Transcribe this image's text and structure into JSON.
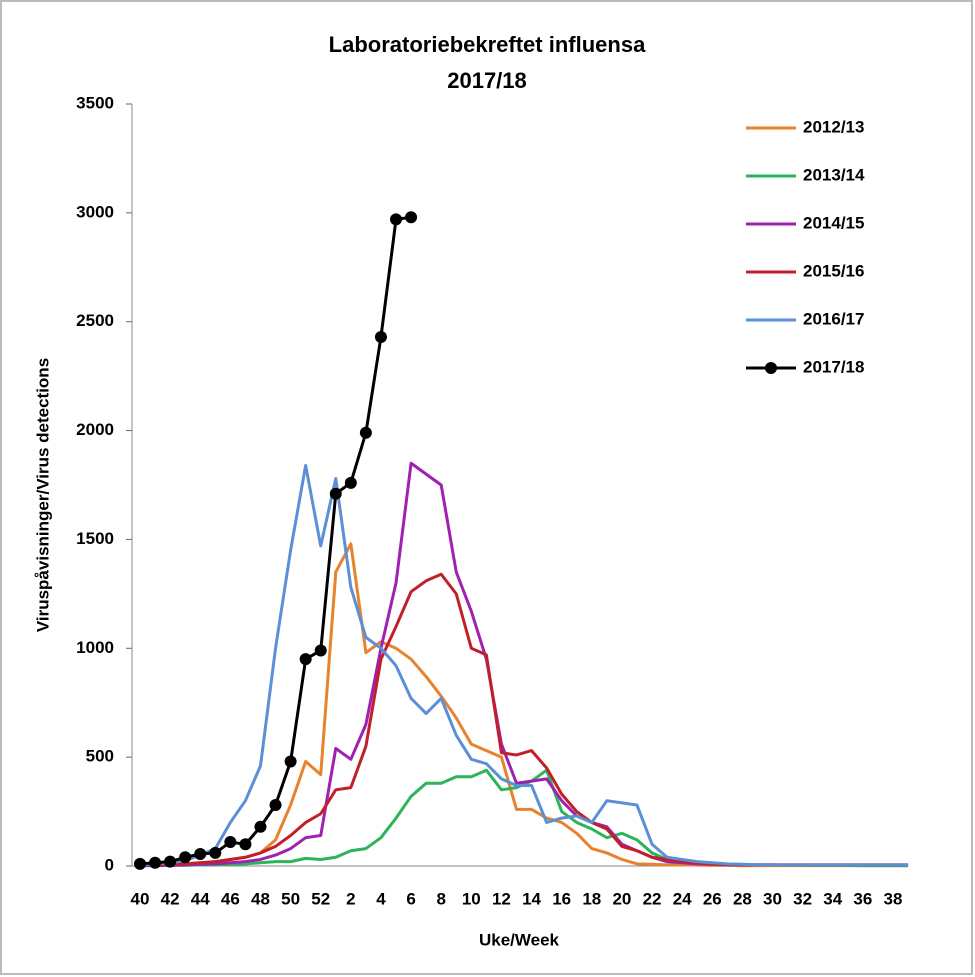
{
  "chart_data": {
    "type": "line",
    "title": "Laboratoriebekreftet influensa",
    "subtitle": "2017/18",
    "x_label": "Uke/Week",
    "y_label": "Viruspåvisninger/Virus detections",
    "categories": [
      "40",
      null,
      "42",
      null,
      "44",
      null,
      "46",
      null,
      "48",
      null,
      "50",
      null,
      "52",
      null,
      "2",
      null,
      "4",
      null,
      "6",
      null,
      "8",
      null,
      "10",
      null,
      "12",
      null,
      "14",
      null,
      "16",
      null,
      "18",
      null,
      "20",
      null,
      "22",
      null,
      "24",
      null,
      "26",
      null,
      "28",
      null,
      "30",
      null,
      "32",
      null,
      "34",
      null,
      "36",
      null,
      "38",
      null
    ],
    "ylim": [
      0,
      3500
    ],
    "yticks": [
      0,
      500,
      1000,
      1500,
      2000,
      2500,
      3000,
      3500
    ],
    "legend": "top-right",
    "series": [
      {
        "name": "2012/13",
        "color": "#e8822c",
        "values": [
          5,
          5,
          8,
          10,
          15,
          20,
          30,
          40,
          60,
          120,
          280,
          480,
          420,
          1350,
          1480,
          980,
          1030,
          1000,
          950,
          870,
          780,
          680,
          560,
          530,
          500,
          260,
          260,
          220,
          200,
          150,
          80,
          60,
          30,
          10,
          8,
          5,
          5,
          4,
          3,
          3,
          2,
          2,
          2,
          2,
          2,
          2,
          2,
          2,
          2,
          2,
          2,
          2
        ]
      },
      {
        "name": "2013/14",
        "color": "#2db45a",
        "values": [
          2,
          2,
          3,
          3,
          5,
          5,
          8,
          10,
          15,
          20,
          20,
          35,
          30,
          40,
          70,
          80,
          130,
          220,
          320,
          380,
          380,
          410,
          410,
          440,
          350,
          360,
          390,
          440,
          250,
          200,
          170,
          130,
          150,
          120,
          60,
          30,
          20,
          15,
          10,
          8,
          5,
          5,
          5,
          4,
          4,
          3,
          3,
          3,
          2,
          2,
          2,
          2
        ]
      },
      {
        "name": "2014/15",
        "color": "#a020b0",
        "values": [
          2,
          2,
          3,
          5,
          8,
          10,
          15,
          20,
          30,
          50,
          80,
          130,
          140,
          540,
          490,
          650,
          1000,
          1300,
          1850,
          1800,
          1750,
          1350,
          1170,
          950,
          560,
          380,
          390,
          400,
          300,
          230,
          200,
          180,
          100,
          70,
          40,
          20,
          15,
          10,
          8,
          6,
          5,
          5,
          5,
          5,
          5,
          5,
          5,
          5,
          5,
          5,
          5,
          5
        ]
      },
      {
        "name": "2015/16",
        "color": "#c0202a",
        "values": [
          5,
          5,
          8,
          10,
          15,
          20,
          30,
          40,
          60,
          90,
          140,
          200,
          240,
          350,
          360,
          550,
          950,
          1100,
          1260,
          1310,
          1340,
          1250,
          1000,
          970,
          520,
          510,
          530,
          450,
          330,
          250,
          200,
          170,
          90,
          70,
          40,
          30,
          20,
          15,
          10,
          8,
          5,
          5,
          5,
          5,
          5,
          5,
          5,
          5,
          5,
          5,
          5,
          5
        ]
      },
      {
        "name": "2016/17",
        "color": "#5b8fd6",
        "values": [
          5,
          10,
          15,
          25,
          50,
          80,
          200,
          300,
          460,
          1000,
          1450,
          1840,
          1470,
          1780,
          1280,
          1050,
          1000,
          920,
          770,
          700,
          770,
          600,
          490,
          470,
          400,
          370,
          370,
          200,
          220,
          230,
          200,
          300,
          290,
          280,
          100,
          40,
          30,
          20,
          15,
          10,
          8,
          5,
          5,
          5,
          5,
          5,
          5,
          5,
          5,
          5,
          5,
          5
        ]
      },
      {
        "name": "2017/18",
        "color": "#000000",
        "markers": true,
        "values": [
          10,
          15,
          20,
          40,
          55,
          60,
          110,
          100,
          180,
          280,
          480,
          950,
          990,
          1710,
          1760,
          1990,
          2430,
          2970,
          2980,
          null,
          null,
          null,
          null,
          null,
          null,
          null,
          null,
          null,
          null,
          null,
          null,
          null,
          null,
          null,
          null,
          null,
          null,
          null,
          null,
          null,
          null,
          null,
          null,
          null,
          null,
          null,
          null,
          null,
          null,
          null,
          null,
          null
        ]
      }
    ]
  }
}
